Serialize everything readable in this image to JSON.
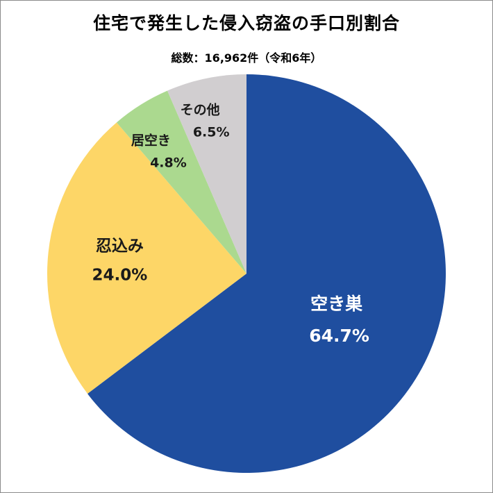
{
  "chart_data": {
    "type": "pie",
    "title": "住宅で発生した侵入窃盗の手口別割合",
    "subtitle": "総数：16,962件（令和6年）",
    "start": "top",
    "direction": "clockwise",
    "slices": [
      {
        "label": "空き巣",
        "value": 64.7,
        "value_label": "64.7%",
        "color": "#1f4e9f",
        "text_color": "#ffffff"
      },
      {
        "label": "忍込み",
        "value": 24.0,
        "value_label": "24.0%",
        "color": "#fdd667",
        "text_color": "#1a1a1a"
      },
      {
        "label": "居空き",
        "value": 4.8,
        "value_label": "4.8%",
        "color": "#abd98f",
        "text_color": "#1a1a1a"
      },
      {
        "label": "その他",
        "value": 6.5,
        "value_label": "6.5%",
        "color": "#d1ced0",
        "text_color": "#1a1a1a"
      }
    ]
  }
}
